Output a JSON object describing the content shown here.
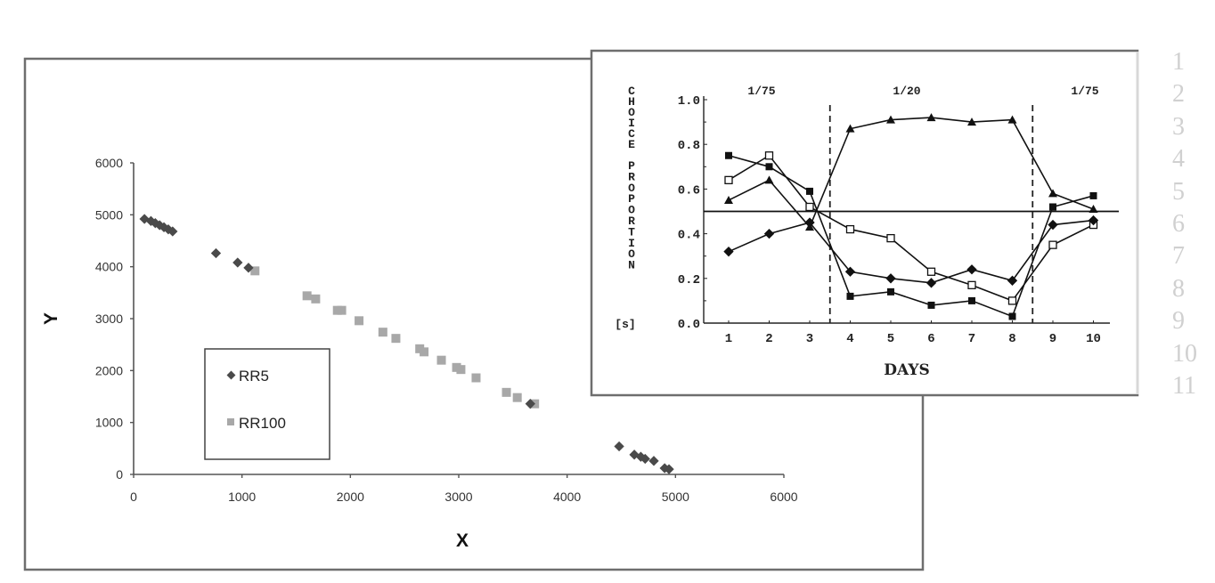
{
  "chart_data": [
    {
      "type": "scatter",
      "title": "",
      "xlabel": "X",
      "ylabel": "Y",
      "xlim": [
        0,
        6000
      ],
      "ylim": [
        0,
        6000
      ],
      "x_ticks": [
        "0",
        "1000",
        "2000",
        "3000",
        "4000",
        "5000",
        "6000"
      ],
      "y_ticks": [
        "0",
        "1000",
        "2000",
        "3000",
        "4000",
        "5000",
        "6000"
      ],
      "grid": false,
      "legend_position": "inside-left",
      "series": [
        {
          "name": "RR5",
          "marker": "diamond",
          "color": "#4a4a4a",
          "points": [
            [
              100,
              4920
            ],
            [
              160,
              4880
            ],
            [
              200,
              4840
            ],
            [
              240,
              4800
            ],
            [
              280,
              4760
            ],
            [
              320,
              4720
            ],
            [
              360,
              4680
            ],
            [
              760,
              4260
            ],
            [
              960,
              4080
            ],
            [
              1060,
              3980
            ],
            [
              3660,
              1360
            ],
            [
              4480,
              540
            ],
            [
              4620,
              380
            ],
            [
              4680,
              340
            ],
            [
              4720,
              300
            ],
            [
              4800,
              260
            ],
            [
              4900,
              120
            ],
            [
              4940,
              100
            ]
          ]
        },
        {
          "name": "RR100",
          "marker": "square",
          "color": "#a8a8a8",
          "points": [
            [
              1120,
              3920
            ],
            [
              1600,
              3440
            ],
            [
              1680,
              3380
            ],
            [
              1880,
              3160
            ],
            [
              1920,
              3160
            ],
            [
              2080,
              2960
            ],
            [
              2300,
              2740
            ],
            [
              2420,
              2620
            ],
            [
              2640,
              2420
            ],
            [
              2680,
              2360
            ],
            [
              2840,
              2200
            ],
            [
              2980,
              2060
            ],
            [
              3020,
              2020
            ],
            [
              3160,
              1860
            ],
            [
              3440,
              1580
            ],
            [
              3540,
              1480
            ],
            [
              3700,
              1360
            ]
          ]
        }
      ]
    },
    {
      "type": "line",
      "title": "",
      "xlabel": "DAYS",
      "ylabel": "CHOICE PROPORTION",
      "ylabel_unit": "[s]",
      "x": [
        1,
        2,
        3,
        4,
        5,
        6,
        7,
        8,
        9,
        10
      ],
      "x_ticks": [
        "1",
        "2",
        "3",
        "4",
        "5",
        "6",
        "7",
        "8",
        "9",
        "10"
      ],
      "y_ticks": [
        "0.0",
        "0.2",
        "0.4",
        "0.6",
        "0.8",
        "1.0"
      ],
      "ylim": [
        0,
        1.0
      ],
      "grid": false,
      "reference_line_y": 0.5,
      "phase_dividers_x": [
        3.5,
        8.5
      ],
      "phase_labels": [
        "1/75",
        "1/20",
        "1/75"
      ],
      "series": [
        {
          "name": "filled-triangle",
          "marker": "triangle",
          "filled": true,
          "values": [
            0.55,
            0.64,
            0.43,
            0.87,
            0.91,
            0.92,
            0.9,
            0.91,
            0.58,
            0.51
          ]
        },
        {
          "name": "filled-square",
          "marker": "square",
          "filled": true,
          "values": [
            0.75,
            0.7,
            0.59,
            0.12,
            0.14,
            0.08,
            0.1,
            0.03,
            0.52,
            0.57
          ]
        },
        {
          "name": "open-square",
          "marker": "square",
          "filled": false,
          "values": [
            0.64,
            0.75,
            0.52,
            0.42,
            0.38,
            0.23,
            0.17,
            0.1,
            0.35,
            0.44
          ]
        },
        {
          "name": "filled-diamond",
          "marker": "diamond",
          "filled": true,
          "values": [
            0.32,
            0.4,
            0.45,
            0.23,
            0.2,
            0.18,
            0.24,
            0.19,
            0.44,
            0.46
          ]
        }
      ]
    }
  ],
  "main_chart": {
    "x_label": "X",
    "y_label": "Y",
    "x_ticks": [
      "0",
      "1000",
      "2000",
      "3000",
      "4000",
      "5000",
      "6000"
    ],
    "y_ticks": [
      "0",
      "1000",
      "2000",
      "3000",
      "4000",
      "5000",
      "6000"
    ],
    "legend": [
      {
        "label": "RR5",
        "marker": "diamond",
        "color": "#4a4a4a"
      },
      {
        "label": "RR100",
        "marker": "square",
        "color": "#a8a8a8"
      }
    ]
  },
  "inset_chart": {
    "y_label_word1": "CHOICE",
    "y_label_word2": "PROPORTION",
    "y_label_unit": "[s]",
    "x_label": "DAYS",
    "phase_labels": [
      "1/75",
      "1/20",
      "1/75"
    ],
    "y_ticks": [
      "0.0",
      "0.2",
      "0.4",
      "0.6",
      "0.8",
      "1.0"
    ],
    "x_ticks": [
      "1",
      "2",
      "3",
      "4",
      "5",
      "6",
      "7",
      "8",
      "9",
      "10"
    ]
  },
  "line_numbers": [
    "1",
    "2",
    "3",
    "4",
    "5",
    "6",
    "7",
    "8",
    "9",
    "10",
    "11"
  ],
  "colors": {
    "frame": "#6e6e6e",
    "axis": "#555555",
    "rr5": "#4a4a4a",
    "rr100": "#a8a8a8",
    "ink": "#111111",
    "line_number": "#d0d0d0"
  }
}
